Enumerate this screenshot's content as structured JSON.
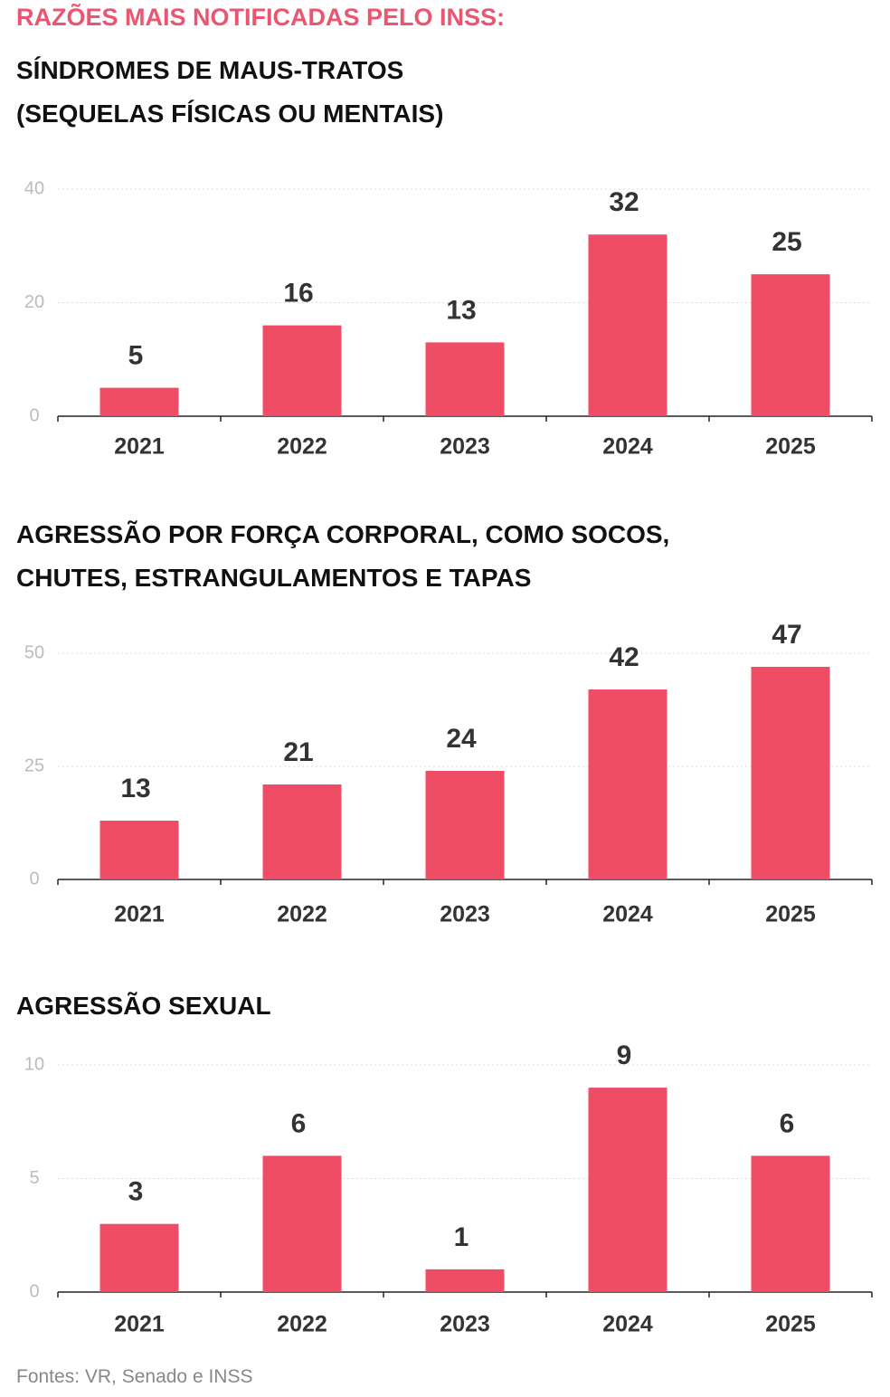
{
  "header": {
    "title": "RAZÕES MAIS NOTIFICADAS PELO INSS:"
  },
  "chart_data": [
    {
      "type": "bar",
      "title": "SÍNDROMES DE MAUS-TRATOS\n(SEQUELAS FÍSICAS OU MENTAIS)",
      "categories": [
        "2021",
        "2022",
        "2023",
        "2024",
        "2025"
      ],
      "values": [
        5,
        16,
        13,
        32,
        25
      ],
      "color": "#ef4c66",
      "ylim": [
        0,
        40
      ],
      "yticks": [
        0,
        20,
        40
      ],
      "grid": true
    },
    {
      "type": "bar",
      "title": "AGRESSÃO POR FORÇA CORPORAL, COMO SOCOS,\nCHUTES, ESTRANGULAMENTOS E TAPAS",
      "categories": [
        "2021",
        "2022",
        "2023",
        "2024",
        "2025"
      ],
      "values": [
        13,
        21,
        24,
        42,
        47
      ],
      "color": "#ef4c66",
      "ylim": [
        0,
        50
      ],
      "yticks": [
        0,
        25,
        50
      ],
      "grid": true
    },
    {
      "type": "bar",
      "title": "AGRESSÃO SEXUAL",
      "categories": [
        "2021",
        "2022",
        "2023",
        "2024",
        "2025"
      ],
      "values": [
        3,
        6,
        1,
        9,
        6
      ],
      "color": "#ef4c66",
      "ylim": [
        0,
        10
      ],
      "yticks": [
        0,
        5,
        10
      ],
      "grid": true
    }
  ],
  "source": "Fontes: VR, Senado e INSS"
}
